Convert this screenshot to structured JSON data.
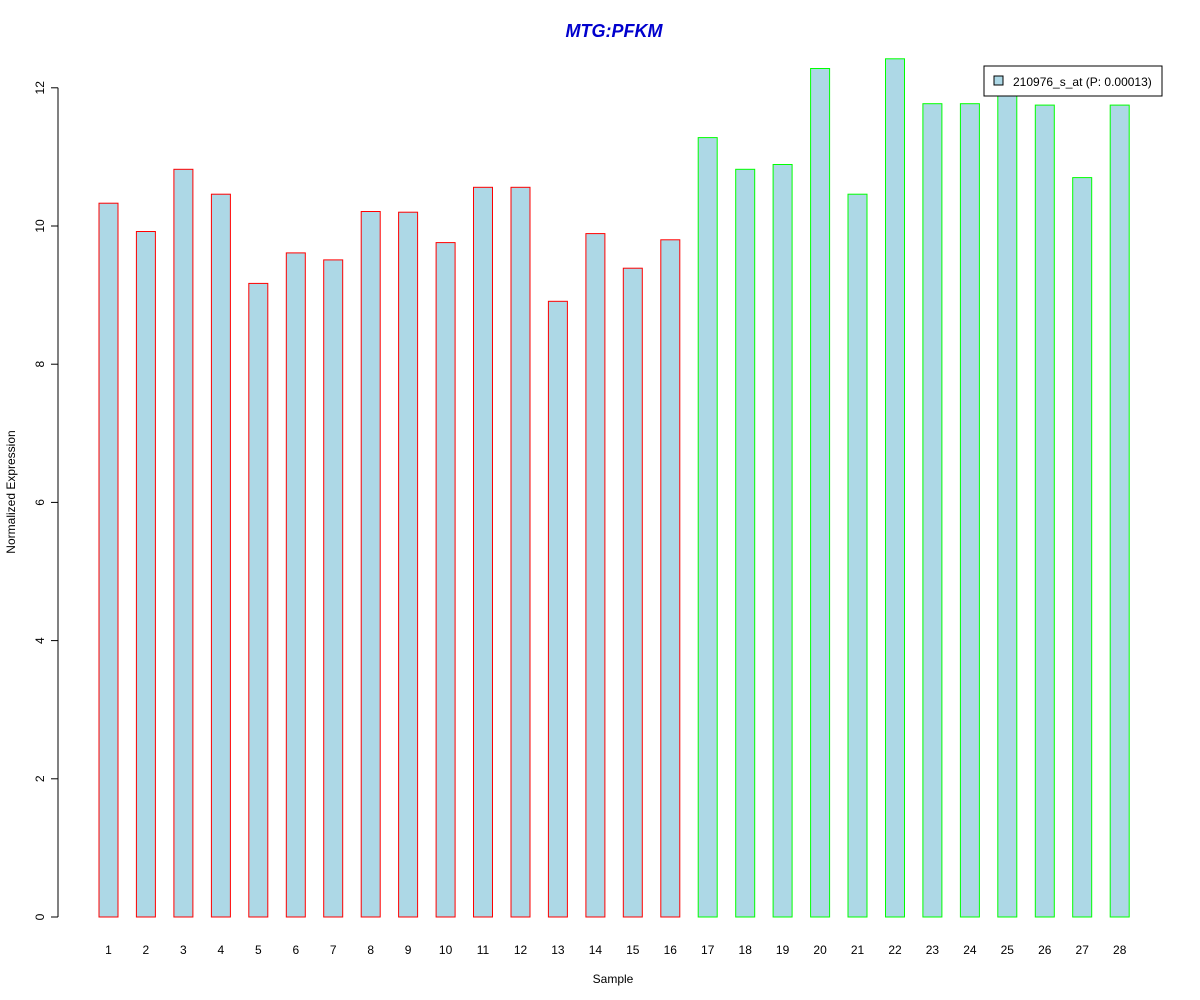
{
  "colors": {
    "bar_fill": "#add8e6",
    "group1_border": "#ff0000",
    "group2_border": "#00ff00",
    "title": "#0000cd"
  },
  "chart_data": {
    "type": "bar",
    "title": "MTG:PFKM",
    "xlabel": "Sample",
    "ylabel": "Normalized Expression",
    "ylim": [
      0,
      12.5
    ],
    "yticks": [
      0,
      2,
      4,
      6,
      8,
      10,
      12
    ],
    "categories": [
      "1",
      "2",
      "3",
      "4",
      "5",
      "6",
      "7",
      "8",
      "9",
      "10",
      "11",
      "12",
      "13",
      "14",
      "15",
      "16",
      "17",
      "18",
      "19",
      "20",
      "21",
      "22",
      "23",
      "24",
      "25",
      "26",
      "27",
      "28"
    ],
    "series": [
      {
        "name": "210976_s_at (P: 0.00013)",
        "values": [
          10.33,
          9.92,
          10.82,
          10.46,
          9.17,
          9.61,
          9.51,
          10.21,
          10.2,
          9.76,
          10.56,
          10.56,
          8.91,
          9.89,
          9.39,
          9.8,
          11.28,
          10.82,
          10.89,
          12.28,
          10.46,
          12.42,
          11.77,
          11.77,
          11.97,
          11.75,
          10.7,
          11.75
        ]
      }
    ],
    "groups": [
      1,
      1,
      1,
      1,
      1,
      1,
      1,
      1,
      1,
      1,
      1,
      1,
      1,
      1,
      1,
      1,
      2,
      2,
      2,
      2,
      2,
      2,
      2,
      2,
      2,
      2,
      2,
      2
    ],
    "legend_position": "top-right",
    "grid": false
  }
}
